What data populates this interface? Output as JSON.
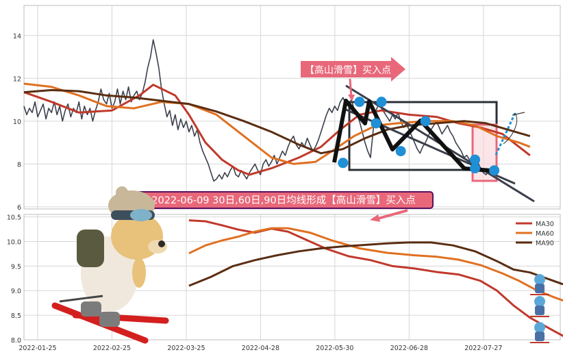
{
  "colors": {
    "price": "#3a3f4b",
    "ma30": "#c0392b",
    "ma60": "#e07020",
    "ma90": "#5a2d12",
    "pattern": "#111111",
    "marker": "#1f8fd6",
    "box": "#2b2f36",
    "callout_fill": "#e8687a",
    "banner_border": "#5a1060",
    "grid": "#d6d6d6"
  },
  "top_callout": "【高山滑雪】买入点",
  "banner": "2022-06-09 30日,60日,90日均线形成【高山滑雪】买入点",
  "chart_data": [
    {
      "type": "line",
      "ylim": [
        5.9,
        15.4
      ],
      "yticks": [
        6,
        8,
        10,
        12,
        14
      ],
      "xlim": [
        0,
        195
      ],
      "series": [
        {
          "id": "price",
          "values": [
            10.7,
            10.3,
            10.6,
            10.4,
            10.9,
            10.2,
            10.5,
            10.8,
            10.1,
            10.6,
            10.4,
            10.9,
            10.3,
            10.7,
            10.0,
            10.5,
            10.8,
            10.2,
            10.6,
            10.4,
            10.9,
            10.1,
            10.7,
            10.3,
            10.6,
            10.0,
            10.5,
            10.9,
            11.5,
            11.0,
            10.8,
            11.3,
            10.6,
            10.9,
            11.5,
            10.8,
            11.4,
            11.0,
            11.6,
            10.9,
            11.2,
            11.4,
            11.0,
            11.3,
            11.8,
            12.5,
            13.0,
            13.8,
            13.2,
            12.5,
            11.5,
            10.8,
            10.2,
            10.5,
            9.8,
            10.3,
            9.6,
            10.1,
            9.7,
            10.0,
            9.5,
            9.8,
            9.3,
            9.6,
            9.0,
            8.6,
            8.3,
            8.0,
            7.6,
            7.2,
            7.3,
            7.5,
            7.3,
            7.6,
            7.4,
            7.7,
            7.9,
            7.5,
            7.4,
            7.7,
            7.5,
            7.3,
            7.6,
            7.8,
            8.0,
            7.7,
            7.5,
            8.0,
            8.2,
            7.9,
            8.1,
            8.4,
            8.0,
            8.3,
            8.6,
            8.4,
            8.8,
            9.1,
            9.3,
            8.9,
            8.7,
            9.0,
            8.8,
            9.2,
            8.9,
            8.6,
            8.8,
            9.1,
            9.5,
            9.9,
            10.3,
            10.6,
            10.4,
            10.7,
            10.5,
            10.9,
            11.1,
            10.8,
            10.7,
            11.0,
            10.6,
            10.3,
            10.0,
            9.5,
            9.0,
            8.6,
            8.3,
            9.6,
            10.5,
            10.8,
            10.6,
            10.4,
            10.2,
            10.0,
            10.3,
            10.1,
            10.4,
            10.0,
            9.7,
            9.9,
            9.6,
            9.3,
            9.0,
            8.7,
            8.5,
            8.8,
            9.0,
            9.3,
            9.6,
            9.8,
            10.0,
            9.7,
            9.4,
            9.6,
            9.8,
            9.5,
            9.3,
            9.0,
            8.8,
            8.6,
            8.3,
            8.4,
            8.2,
            8.0,
            7.9,
            8.1,
            7.8,
            7.6,
            7.5,
            7.7,
            7.6
          ]
        },
        {
          "id": "ma30",
          "knots": [
            [
              0,
              11.35
            ],
            [
              10,
              10.9
            ],
            [
              20,
              10.4
            ],
            [
              32,
              10.5
            ],
            [
              42,
              11.2
            ],
            [
              47,
              11.7
            ],
            [
              55,
              11.2
            ],
            [
              60,
              10.3
            ],
            [
              66,
              9.0
            ],
            [
              72,
              8.2
            ],
            [
              78,
              7.7
            ],
            [
              82,
              7.5
            ],
            [
              90,
              7.8
            ],
            [
              100,
              8.3
            ],
            [
              108,
              8.8
            ],
            [
              115,
              9.6
            ],
            [
              122,
              10.3
            ],
            [
              130,
              10.5
            ],
            [
              140,
              10.3
            ],
            [
              150,
              10.2
            ],
            [
              158,
              9.9
            ],
            [
              166,
              9.7
            ],
            [
              174,
              9.4
            ],
            [
              180,
              8.8
            ],
            [
              184,
              8.4
            ]
          ]
        },
        {
          "id": "ma60",
          "knots": [
            [
              0,
              11.75
            ],
            [
              10,
              11.6
            ],
            [
              20,
              11.2
            ],
            [
              30,
              10.7
            ],
            [
              40,
              10.6
            ],
            [
              50,
              10.9
            ],
            [
              60,
              10.8
            ],
            [
              70,
              10.3
            ],
            [
              80,
              9.3
            ],
            [
              90,
              8.3
            ],
            [
              98,
              8.0
            ],
            [
              106,
              8.1
            ],
            [
              112,
              8.6
            ],
            [
              120,
              9.3
            ],
            [
              128,
              9.8
            ],
            [
              136,
              9.9
            ],
            [
              146,
              10.0
            ],
            [
              156,
              10.0
            ],
            [
              164,
              9.8
            ],
            [
              172,
              9.3
            ],
            [
              180,
              9.0
            ],
            [
              184,
              8.8
            ]
          ]
        },
        {
          "id": "ma90",
          "knots": [
            [
              0,
              11.35
            ],
            [
              10,
              11.45
            ],
            [
              20,
              11.4
            ],
            [
              30,
              11.2
            ],
            [
              40,
              11.1
            ],
            [
              50,
              10.95
            ],
            [
              60,
              10.8
            ],
            [
              70,
              10.45
            ],
            [
              80,
              10.0
            ],
            [
              90,
              9.5
            ],
            [
              100,
              8.9
            ],
            [
              108,
              8.5
            ],
            [
              116,
              8.7
            ],
            [
              124,
              9.2
            ],
            [
              132,
              9.6
            ],
            [
              140,
              9.8
            ],
            [
              150,
              9.9
            ],
            [
              160,
              10.0
            ],
            [
              168,
              9.9
            ],
            [
              176,
              9.6
            ],
            [
              184,
              9.3
            ]
          ]
        }
      ],
      "signal_points": [
        [
          116,
          8.05
        ],
        [
          122,
          10.9
        ],
        [
          128,
          9.9
        ],
        [
          130,
          10.9
        ],
        [
          137,
          8.6
        ],
        [
          146,
          10.0
        ],
        [
          164,
          8.2
        ],
        [
          164,
          7.8
        ],
        [
          171,
          7.7
        ]
      ]
    },
    {
      "type": "line",
      "ylim": [
        8.0,
        10.55
      ],
      "yticks": [
        8.0,
        8.5,
        9.0,
        9.5,
        10.0,
        10.5
      ],
      "xlim": [
        0,
        195
      ],
      "xticks": [
        "2022-01-25",
        "2022-02-25",
        "2022-03-25",
        "2022-04-28",
        "2022-05-30",
        "2022-06-28",
        "2022-07-27"
      ],
      "legend_position": "top-right",
      "series": [
        {
          "name": "MA30",
          "id": "ma30",
          "knots": [
            [
              60,
              10.43
            ],
            [
              66,
              10.41
            ],
            [
              72,
              10.33
            ],
            [
              78,
              10.24
            ],
            [
              84,
              10.18
            ],
            [
              90,
              10.26
            ],
            [
              96,
              10.2
            ],
            [
              104,
              10.0
            ],
            [
              110,
              9.85
            ],
            [
              118,
              9.7
            ],
            [
              126,
              9.62
            ],
            [
              134,
              9.5
            ],
            [
              142,
              9.45
            ],
            [
              150,
              9.38
            ],
            [
              158,
              9.33
            ],
            [
              166,
              9.2
            ],
            [
              172,
              9.0
            ],
            [
              178,
              8.7
            ],
            [
              184,
              8.45
            ],
            [
              192,
              8.2
            ],
            [
              197,
              8.05
            ]
          ]
        },
        {
          "name": "MA60",
          "id": "ma60",
          "knots": [
            [
              60,
              9.76
            ],
            [
              66,
              9.92
            ],
            [
              72,
              10.02
            ],
            [
              78,
              10.1
            ],
            [
              84,
              10.2
            ],
            [
              90,
              10.27
            ],
            [
              96,
              10.27
            ],
            [
              104,
              10.18
            ],
            [
              112,
              10.02
            ],
            [
              122,
              9.86
            ],
            [
              132,
              9.77
            ],
            [
              142,
              9.72
            ],
            [
              150,
              9.69
            ],
            [
              158,
              9.63
            ],
            [
              166,
              9.52
            ],
            [
              174,
              9.35
            ],
            [
              180,
              9.2
            ],
            [
              186,
              9.02
            ],
            [
              192,
              8.88
            ],
            [
              197,
              8.78
            ]
          ]
        },
        {
          "name": "MA90",
          "id": "ma90",
          "knots": [
            [
              60,
              9.1
            ],
            [
              68,
              9.28
            ],
            [
              76,
              9.5
            ],
            [
              84,
              9.62
            ],
            [
              92,
              9.72
            ],
            [
              100,
              9.8
            ],
            [
              108,
              9.86
            ],
            [
              116,
              9.9
            ],
            [
              124,
              9.93
            ],
            [
              132,
              9.96
            ],
            [
              140,
              9.98
            ],
            [
              148,
              9.98
            ],
            [
              156,
              9.92
            ],
            [
              164,
              9.8
            ],
            [
              172,
              9.6
            ],
            [
              178,
              9.43
            ],
            [
              184,
              9.37
            ],
            [
              190,
              9.25
            ],
            [
              196,
              9.13
            ]
          ]
        }
      ]
    }
  ]
}
